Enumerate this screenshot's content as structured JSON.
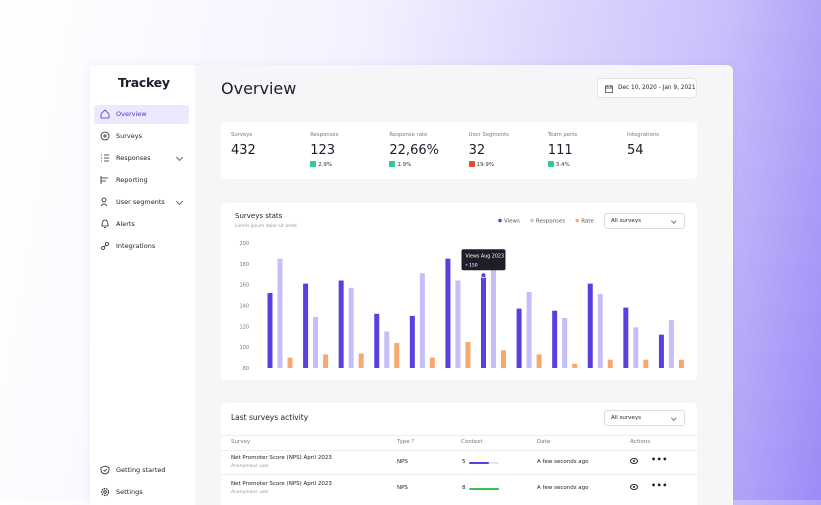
{
  "brand": "Trackey",
  "nav": [
    "Overview",
    "Surveys",
    "Responses",
    "Reporting",
    "User segments",
    "Alerts",
    "Integrations"
  ],
  "nav_bottom": [
    "Getting started",
    "Settings"
  ],
  "page_title": "Overview",
  "date_range": "Dec 10, 2020 - Jan 9, 2021",
  "stats": [
    {
      "label": "Surveys",
      "value": "432"
    },
    {
      "label": "Responses",
      "value": "123",
      "change": "2.9%",
      "trend": "up"
    },
    {
      "label": "Response rate",
      "value": "22,66%",
      "change": "1.9%",
      "trend": "up"
    },
    {
      "label": "User Segments",
      "value": "32",
      "change": "19.9%",
      "trend": "down"
    },
    {
      "label": "Team perts",
      "value": "111",
      "change": "3.4%",
      "trend": "up"
    },
    {
      "label": "Integrations",
      "value": "54"
    }
  ],
  "chart_data": {
    "type": "bar",
    "title": "Surveys stats",
    "subtitle": "Lorem ipsum dolor sit amet",
    "filter": "All surveys",
    "categories": [
      null,
      null,
      null,
      null,
      null,
      null,
      null,
      null,
      null,
      null,
      null,
      null
    ],
    "series": [
      {
        "name": "Views",
        "color": "#5a3fe0",
        "values": [
          152,
          161,
          164,
          132,
          130,
          185,
          169,
          137,
          135,
          161,
          138,
          112
        ]
      },
      {
        "name": "Responses",
        "color": "#c5befa",
        "values": [
          185,
          129,
          157,
          115,
          171,
          164,
          182,
          153,
          128,
          151,
          119,
          126
        ]
      },
      {
        "name": "Rate",
        "color": "#f6a96f",
        "values": [
          90,
          93,
          94,
          104,
          90,
          105,
          97,
          93,
          84,
          88,
          88,
          88
        ]
      }
    ],
    "ylim": [
      80,
      200
    ],
    "yticks": [
      80,
      100,
      120,
      140,
      160,
      180,
      200
    ],
    "grid": false,
    "tooltip": {
      "title": "Views Aug 2023",
      "value": "150"
    }
  },
  "table": {
    "title": "Last surveys activity",
    "filter": "All surveys",
    "columns": [
      "Survey",
      "Type ?",
      "Context",
      "Date",
      "Actions"
    ],
    "rows": [
      {
        "survey": "Net Promoter Score (NPS) April 2023",
        "owner": "Anonymous user",
        "type": "NPS",
        "context": "5",
        "date": "A few seconds ago"
      },
      {
        "survey": "Net Promoter Score (NPS) April 2023",
        "owner": "Anonymous user",
        "type": "NPS",
        "context": "8",
        "date": "A few seconds ago"
      }
    ]
  }
}
